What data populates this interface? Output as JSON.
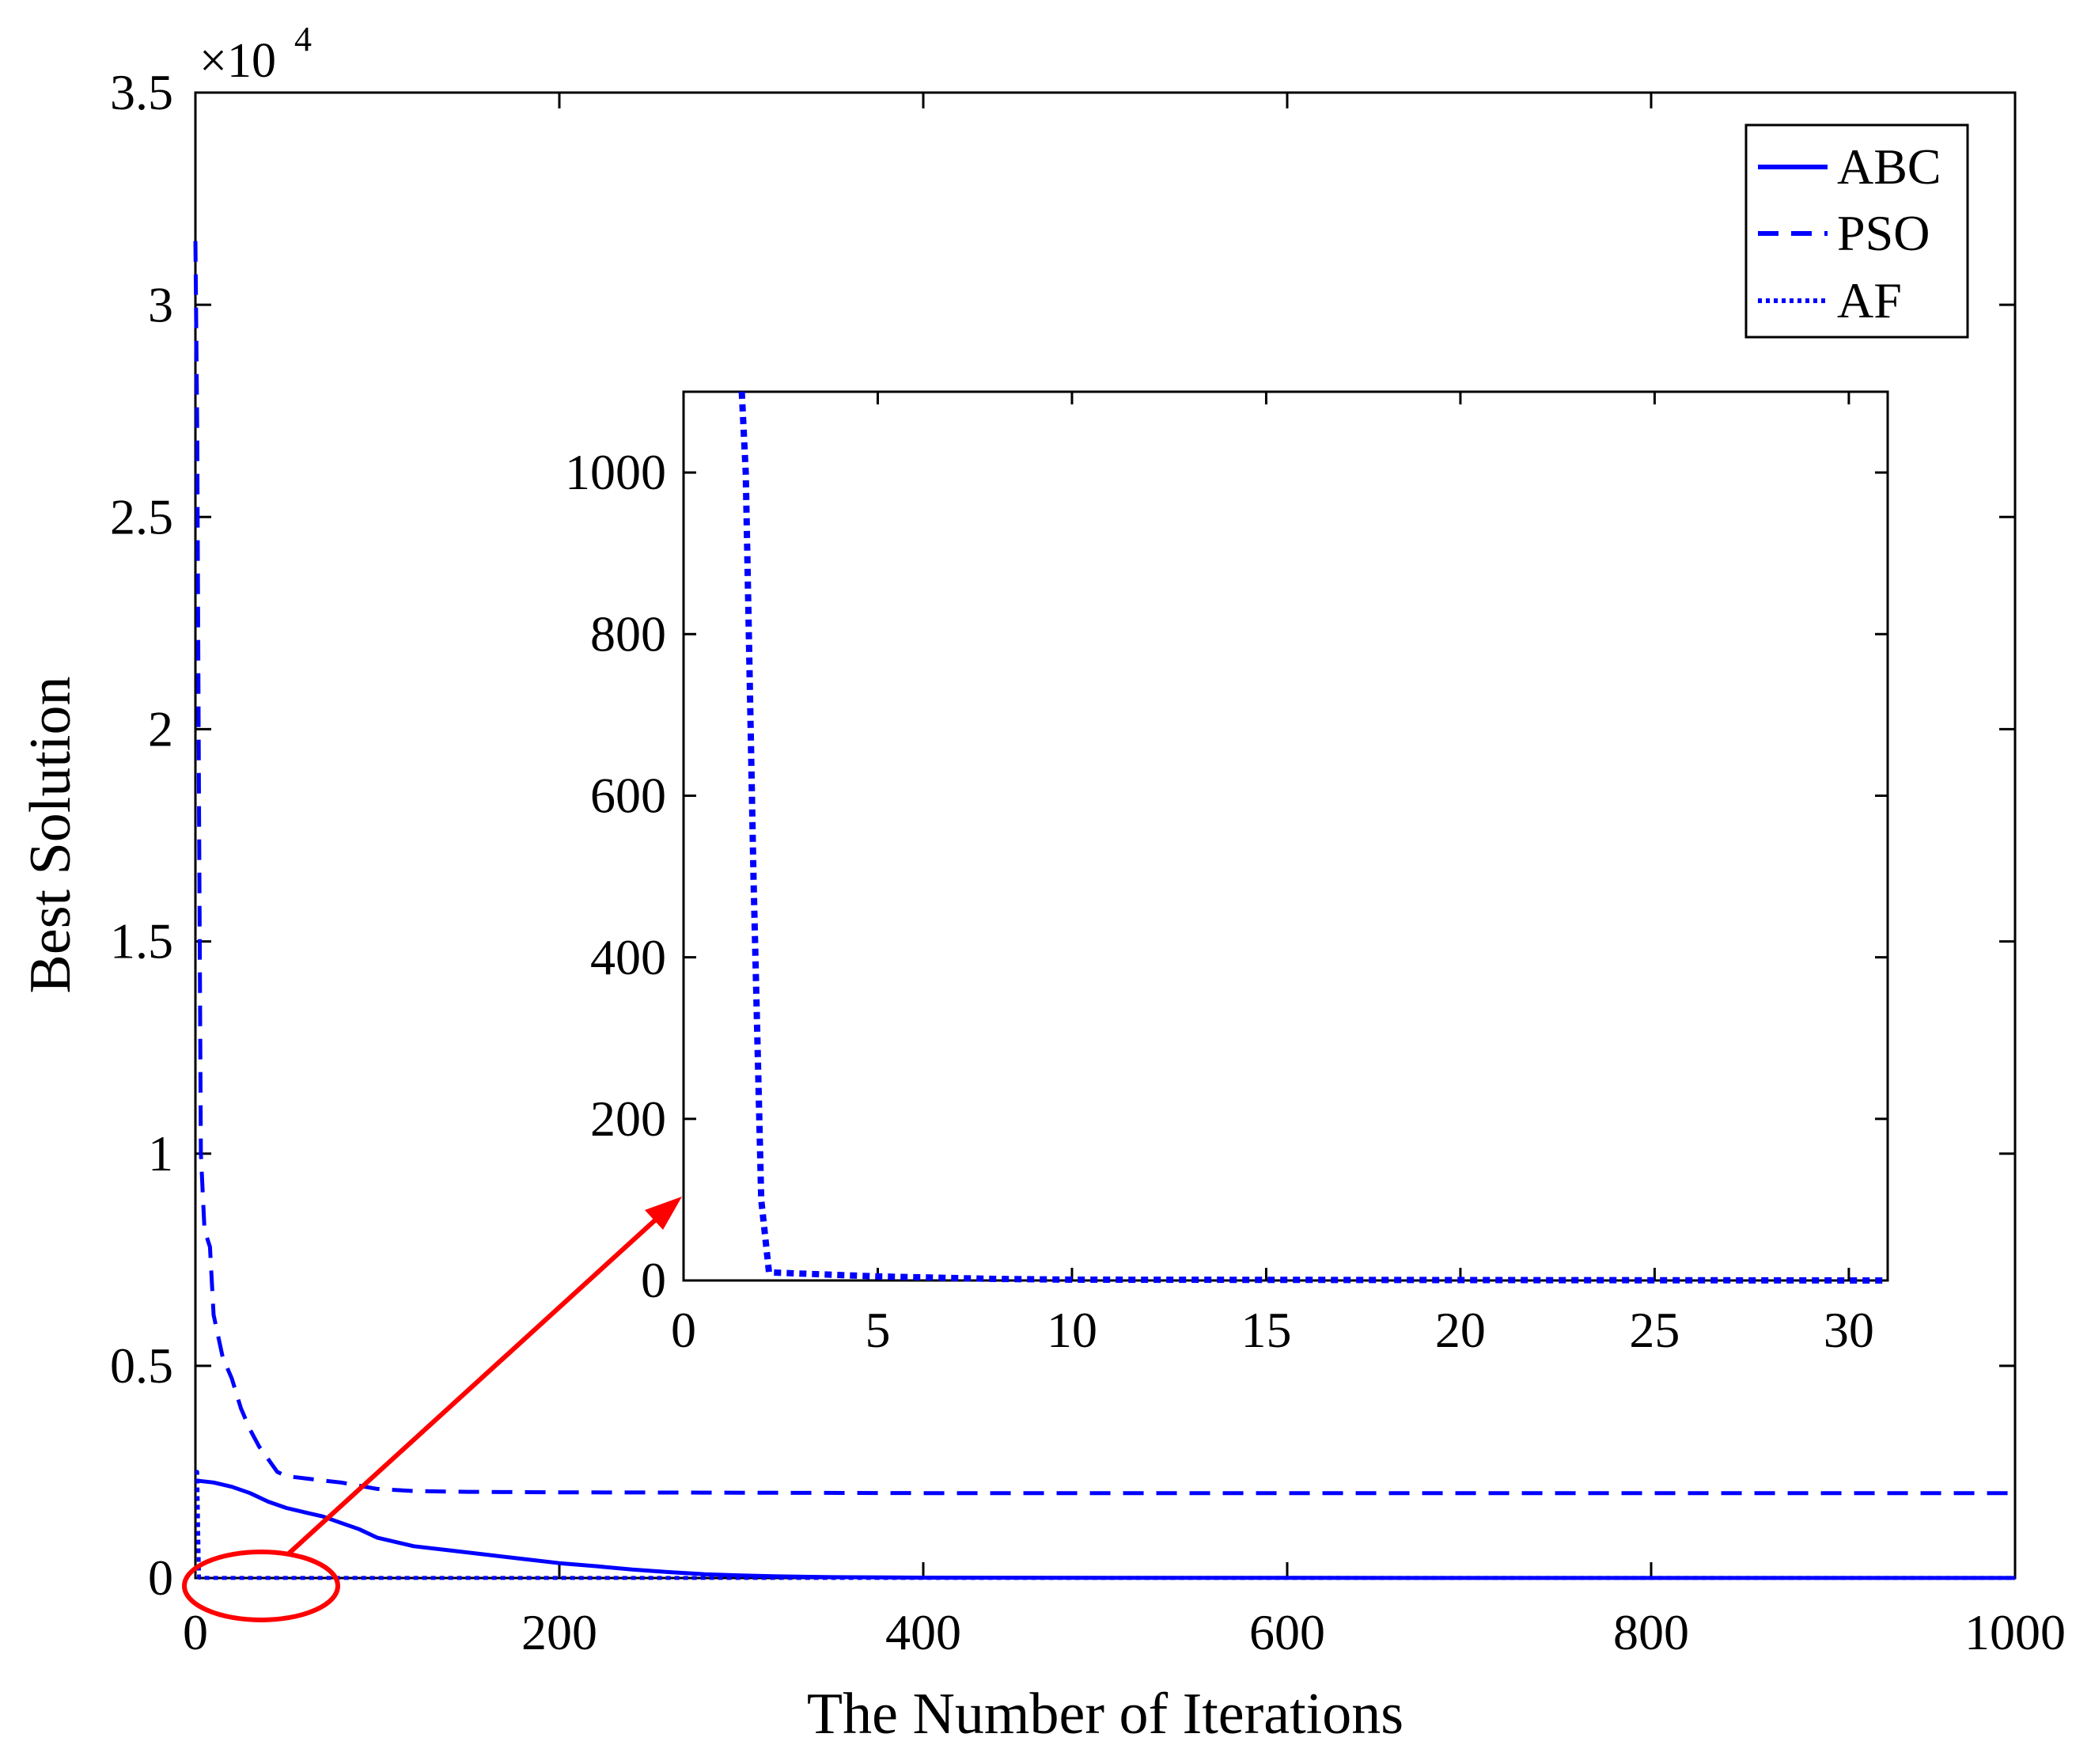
{
  "chart_data": [
    {
      "type": "line",
      "title": "",
      "xlabel": "The Number of Iterations",
      "ylabel": "Best Solution",
      "y_multiplier": {
        "base": "×10",
        "exponent": "4"
      },
      "xlim": [
        0,
        1000
      ],
      "ylim": [
        0,
        3.5
      ],
      "xticks": [
        0,
        200,
        400,
        600,
        800,
        1000
      ],
      "xtick_labels": [
        "0",
        "200",
        "400",
        "600",
        "800",
        "1000"
      ],
      "yticks": [
        0,
        0.5,
        1,
        1.5,
        2,
        2.5,
        3,
        3.5
      ],
      "ytick_labels": [
        "0",
        "0.5",
        "1",
        "1.5",
        "2",
        "2.5",
        "3",
        "3.5"
      ],
      "grid": false,
      "legend_position": "top-right",
      "line_color": "#0000ff",
      "series": [
        {
          "name": "ABC",
          "style": "solid",
          "x": [
            0,
            10,
            20,
            30,
            40,
            50,
            60,
            70,
            80,
            90,
            100,
            110,
            120,
            140,
            160,
            180,
            200,
            220,
            240,
            260,
            280,
            300,
            320,
            350,
            400,
            500,
            600,
            700,
            800,
            900,
            1000
          ],
          "y": [
            0.23,
            0.225,
            0.215,
            0.2,
            0.18,
            0.165,
            0.155,
            0.145,
            0.13,
            0.115,
            0.095,
            0.085,
            0.075,
            0.065,
            0.055,
            0.045,
            0.035,
            0.028,
            0.02,
            0.014,
            0.009,
            0.006,
            0.004,
            0.002,
            0.001,
            0.0005,
            0.0003,
            0.0002,
            0.0001,
            0.0001,
            0.0001
          ]
        },
        {
          "name": "PSO",
          "style": "dashed",
          "x": [
            0,
            1,
            2,
            3,
            5,
            8,
            10,
            15,
            20,
            25,
            30,
            35,
            40,
            45,
            50,
            60,
            70,
            80,
            100,
            120,
            150,
            200,
            300,
            400,
            500,
            600,
            700,
            800,
            900,
            1000
          ],
          "y": [
            3.15,
            2.7,
            1.8,
            1.0,
            0.82,
            0.78,
            0.62,
            0.52,
            0.47,
            0.4,
            0.35,
            0.31,
            0.28,
            0.25,
            0.24,
            0.235,
            0.23,
            0.225,
            0.21,
            0.205,
            0.203,
            0.202,
            0.201,
            0.2,
            0.2,
            0.2,
            0.2,
            0.2,
            0.2,
            0.2
          ]
        },
        {
          "name": "AF",
          "style": "dotted",
          "x": [
            0,
            1,
            1.5,
            2,
            5,
            10,
            1000
          ],
          "y": [
            0.25,
            0.25,
            0.12,
            0.001,
            0.0003,
            0.0001,
            0.0001
          ]
        }
      ]
    },
    {
      "type": "line",
      "title": "",
      "xlabel": "",
      "ylabel": "",
      "xlim": [
        0,
        31
      ],
      "ylim": [
        0,
        1100
      ],
      "xticks": [
        0,
        5,
        10,
        15,
        20,
        25,
        30
      ],
      "xtick_labels": [
        "0",
        "5",
        "10",
        "15",
        "20",
        "25",
        "30"
      ],
      "yticks": [
        0,
        200,
        400,
        600,
        800,
        1000
      ],
      "ytick_labels": [
        "0",
        "200",
        "400",
        "600",
        "800",
        "1000"
      ],
      "grid": false,
      "line_color": "#0000ff",
      "series": [
        {
          "style": "dotted",
          "x": [
            1.5,
            1.6,
            1.8,
            2,
            2.2,
            5,
            8,
            10,
            31
          ],
          "y": [
            1100,
            1000,
            500,
            100,
            10,
            5,
            2,
            1,
            0
          ]
        }
      ]
    }
  ],
  "annotation": {
    "color": "#ff0000"
  }
}
